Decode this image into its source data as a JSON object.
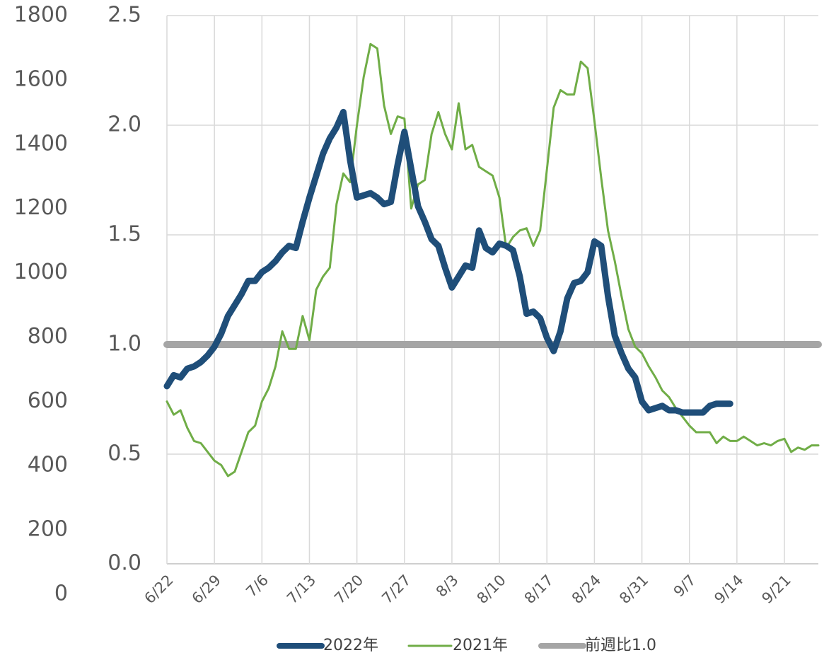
{
  "chart_data": {
    "type": "line",
    "categories": [
      "6/22",
      null,
      null,
      null,
      null,
      null,
      null,
      "6/29",
      null,
      null,
      null,
      null,
      null,
      null,
      "7/6",
      null,
      null,
      null,
      null,
      null,
      null,
      "7/13",
      null,
      null,
      null,
      null,
      null,
      null,
      "7/20",
      null,
      null,
      null,
      null,
      null,
      null,
      "7/27",
      null,
      null,
      null,
      null,
      null,
      null,
      "8/3",
      null,
      null,
      null,
      null,
      null,
      null,
      "8/10",
      null,
      null,
      null,
      null,
      null,
      null,
      "8/17",
      null,
      null,
      null,
      null,
      null,
      null,
      "8/24",
      null,
      null,
      null,
      null,
      null,
      null,
      "8/31",
      null,
      null,
      null,
      null,
      null,
      null,
      "9/7",
      null,
      null,
      null,
      null,
      null,
      null,
      "9/14",
      null,
      null,
      null,
      null,
      null,
      null,
      "9/21",
      null,
      null,
      null,
      null,
      null
    ],
    "ylim": [
      0,
      1800
    ],
    "yticks": [
      0,
      200,
      400,
      600,
      800,
      1000,
      1200,
      1400,
      1600,
      1800
    ],
    "y2lim": [
      0,
      2.5
    ],
    "y2ticks": [
      {
        "value": 0,
        "label": "0.0"
      },
      0.5,
      {
        "value": 1,
        "label": "1.0"
      },
      1.5,
      {
        "value": 2,
        "label": "2.0"
      },
      2.5
    ],
    "grid": true,
    "legend": "bottom",
    "series": [
      {
        "name": "2022年",
        "color": "#1f4e79",
        "axis": "y2",
        "values": [
          0.81,
          0.86,
          0.85,
          0.89,
          0.9,
          0.92,
          0.95,
          0.99,
          1.05,
          1.13,
          1.18,
          1.23,
          1.29,
          1.29,
          1.33,
          1.35,
          1.38,
          1.42,
          1.45,
          1.44,
          1.56,
          1.67,
          1.77,
          1.87,
          1.94,
          1.99,
          2.06,
          1.84,
          1.67,
          1.68,
          1.69,
          1.67,
          1.64,
          1.65,
          1.82,
          1.97,
          1.8,
          1.63,
          1.56,
          1.48,
          1.45,
          1.35,
          1.26,
          1.31,
          1.36,
          1.35,
          1.52,
          1.44,
          1.42,
          1.46,
          1.45,
          1.43,
          1.31,
          1.14,
          1.15,
          1.12,
          1.03,
          0.97,
          1.06,
          1.21,
          1.28,
          1.29,
          1.33,
          1.47,
          1.45,
          1.22,
          1.04,
          0.96,
          0.89,
          0.85,
          0.74,
          0.7,
          0.71,
          0.72,
          0.7,
          0.7,
          0.69,
          0.69,
          0.69,
          0.69,
          0.72,
          0.73,
          0.73,
          0.73,
          null,
          null,
          null,
          null,
          null,
          null,
          null,
          null,
          null,
          null,
          null,
          null,
          null
        ]
      },
      {
        "name": "2021年",
        "color": "#70ad47",
        "axis": "y2",
        "values": [
          0.74,
          0.68,
          0.7,
          0.62,
          0.56,
          0.55,
          0.51,
          0.47,
          0.45,
          0.4,
          0.42,
          0.51,
          0.6,
          0.63,
          0.74,
          0.8,
          0.9,
          1.06,
          0.98,
          0.98,
          1.13,
          1.02,
          1.25,
          1.31,
          1.35,
          1.64,
          1.78,
          1.74,
          2.0,
          2.22,
          2.37,
          2.35,
          2.09,
          1.96,
          2.04,
          2.03,
          1.62,
          1.73,
          1.75,
          1.96,
          2.06,
          1.96,
          1.89,
          2.1,
          1.89,
          1.91,
          1.81,
          1.79,
          1.77,
          1.67,
          1.44,
          1.49,
          1.52,
          1.53,
          1.45,
          1.52,
          1.8,
          2.08,
          2.16,
          2.14,
          2.14,
          2.29,
          2.26,
          2.02,
          1.76,
          1.52,
          1.38,
          1.22,
          1.07,
          0.99,
          0.96,
          0.9,
          0.85,
          0.79,
          0.76,
          0.71,
          0.67,
          0.63,
          0.6,
          0.6,
          0.6,
          0.55,
          0.58,
          0.56,
          0.56,
          0.58,
          0.56,
          0.54,
          0.55,
          0.54,
          0.56,
          0.57,
          0.51,
          0.53,
          0.52,
          0.54,
          0.54
        ]
      },
      {
        "name": "前週比1.0",
        "color": "#a5a5a5",
        "axis": "y2",
        "values": [
          1,
          1,
          1,
          1,
          1,
          1,
          1,
          1,
          1,
          1,
          1,
          1,
          1,
          1,
          1,
          1,
          1,
          1,
          1,
          1,
          1,
          1,
          1,
          1,
          1,
          1,
          1,
          1,
          1,
          1,
          1,
          1,
          1,
          1,
          1,
          1,
          1,
          1,
          1,
          1,
          1,
          1,
          1,
          1,
          1,
          1,
          1,
          1,
          1,
          1,
          1,
          1,
          1,
          1,
          1,
          1,
          1,
          1,
          1,
          1,
          1,
          1,
          1,
          1,
          1,
          1,
          1,
          1,
          1,
          1,
          1,
          1,
          1,
          1,
          1,
          1,
          1,
          1,
          1,
          1,
          1,
          1,
          1,
          1,
          1,
          1,
          1,
          1,
          1,
          1,
          1,
          1,
          1,
          1,
          1,
          1,
          1
        ]
      }
    ]
  }
}
